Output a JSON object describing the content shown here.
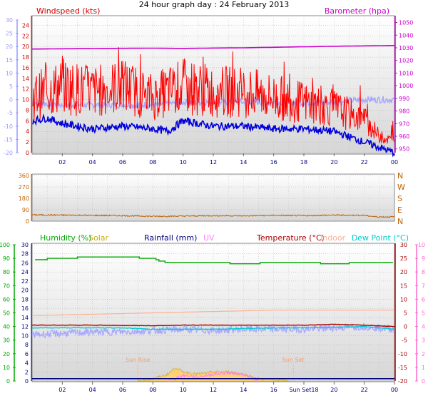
{
  "title": "24 hour graph day : 24 February 2013",
  "colors": {
    "wind_gust": "#ff0000",
    "wind_avg": "#0000dd",
    "temp_scale_trace": "#a8a8ff",
    "barometer": "#cc00cc",
    "wind_dir": "#c06000",
    "humidity": "#00aa00",
    "solar": "#ccaa00",
    "rainfall": "#000080",
    "uv": "#ff80ff",
    "temperature": "#aa0000",
    "indoor": "#ffb090",
    "dew_point": "#00cccc",
    "left_axis": "#9999ff",
    "grid": "#aaaaaa",
    "plot_bg_top": "#ffffff",
    "plot_bg_bottom": "#d8d8d8"
  },
  "chart_data": [
    {
      "type": "line",
      "panel": "wind-barometer",
      "legend_wind": "Windspeed (kts)",
      "legend_baro": "Barometer (hpa)",
      "left_axis": {
        "ticks": [
          "30",
          "25",
          "20",
          "15",
          "10",
          "5",
          "0",
          "-5",
          "-10",
          "-15",
          "-20"
        ],
        "ylim": [
          -20,
          30
        ]
      },
      "wind_axis": {
        "ticks": [
          "24",
          "22",
          "20",
          "18",
          "16",
          "14",
          "12",
          "10",
          "8",
          "6",
          "4",
          "2",
          "0"
        ],
        "ylim": [
          0,
          25
        ]
      },
      "baro_axis": {
        "ticks": [
          "1050",
          "1040",
          "1030",
          "1020",
          "1010",
          "1000",
          "990",
          "980",
          "970",
          "960",
          "950"
        ],
        "ylim": [
          947,
          1052
        ]
      },
      "x_ticks": [
        "02",
        "04",
        "06",
        "08",
        "10",
        "12",
        "14",
        "16",
        "18",
        "20",
        "22",
        "00"
      ],
      "series": [
        {
          "name": "Barometer (hpa)",
          "axis": "baro",
          "x": [
            0,
            2,
            4,
            6,
            8,
            10,
            12,
            14,
            16,
            18,
            20,
            22,
            24
          ],
          "values": [
            1029,
            1029.2,
            1029.4,
            1029.6,
            1029.7,
            1029.5,
            1029.8,
            1030,
            1030.4,
            1030.8,
            1031.2,
            1031.5,
            1031.8
          ]
        },
        {
          "name": "Windspeed (kts) gust",
          "axis": "wind",
          "x": [
            0,
            2,
            4,
            6,
            8,
            10,
            12,
            14,
            16,
            18,
            20,
            22,
            23,
            24
          ],
          "values": [
            10,
            12,
            11,
            12,
            10,
            12,
            11,
            11,
            10,
            9,
            8,
            6,
            3,
            2
          ]
        },
        {
          "name": "Windspeed (kts) average",
          "axis": "wind",
          "x": [
            0,
            1,
            2,
            4,
            6,
            8,
            9,
            10,
            12,
            14,
            16,
            18,
            20,
            22,
            23,
            24
          ],
          "values": [
            6,
            6.5,
            5.5,
            4.5,
            5,
            4.5,
            4,
            6,
            5,
            5,
            4.5,
            4.5,
            4,
            2,
            1,
            0
          ]
        },
        {
          "axis": "left",
          "x": [
            0,
            2,
            4,
            6,
            8,
            10,
            12,
            14,
            16,
            18,
            20,
            22,
            24
          ],
          "values": [
            -1,
            -2,
            -2,
            -2,
            -2,
            -1,
            -1,
            -1,
            -1,
            -1,
            -1,
            0,
            0
          ]
        }
      ]
    },
    {
      "type": "line",
      "panel": "wind-direction",
      "left_ticks": [
        "360",
        "270",
        "180",
        "90",
        "0"
      ],
      "right_ticks": [
        "N",
        "W",
        "S",
        "E",
        "N"
      ],
      "ylim": [
        0,
        360
      ],
      "series": [
        {
          "x": [
            0,
            2,
            4,
            6,
            8,
            10,
            12,
            14,
            16,
            18,
            20,
            22,
            22.8,
            24
          ],
          "values": [
            50,
            48,
            46,
            44,
            38,
            40,
            44,
            42,
            46,
            44,
            48,
            46,
            34,
            34
          ]
        }
      ]
    },
    {
      "type": "line",
      "panel": "humidity-rain-temperature",
      "legend": {
        "humidity": "Humidity (%)",
        "solar": "Solar",
        "rainfall": "Rainfall (mm)",
        "uv": "UV",
        "temperature": "Temperature (°C)",
        "indoor": "Indoor",
        "dew_point": "Dew Point (°C)"
      },
      "humidity_axis": {
        "ticks": [
          "100",
          "90",
          "80",
          "70",
          "60",
          "50",
          "40",
          "30",
          "20",
          "10",
          "0"
        ],
        "ylim": [
          0,
          100
        ]
      },
      "rain_axis": {
        "ticks": [
          "30",
          "28",
          "26",
          "24",
          "22",
          "20",
          "18",
          "16",
          "14",
          "12",
          "10",
          "8",
          "6",
          "4",
          "2",
          "0"
        ],
        "ylim": [
          0,
          30
        ]
      },
      "temp_axis": {
        "ticks": [
          "30",
          "25",
          "20",
          "15",
          "10",
          "5",
          "0",
          "-5",
          "-10",
          "-15",
          "-20"
        ],
        "ylim": [
          -20,
          30
        ]
      },
      "uv_axis": {
        "ticks": [
          "10",
          "9",
          "8",
          "7",
          "6",
          "5",
          "4",
          "3",
          "2",
          "1",
          "0"
        ],
        "ylim": [
          0,
          10
        ]
      },
      "x_ticks": [
        "02",
        "04",
        "06",
        "08",
        "10",
        "12",
        "14",
        "16",
        "Sun Set18",
        "20",
        "22",
        "00"
      ],
      "annotations": [
        {
          "text": "Sun Rise",
          "x": 7.0
        },
        {
          "text": "Sun Set",
          "x": 17.3
        }
      ],
      "series": [
        {
          "name": "Humidity (%)",
          "axis": "humidity",
          "x": [
            0,
            2,
            4,
            6,
            8,
            8.5,
            9,
            10,
            12,
            14,
            16,
            18,
            20,
            22,
            24
          ],
          "values": [
            89,
            90,
            91,
            91,
            90,
            88,
            87,
            87,
            87,
            86,
            87,
            87,
            86,
            87,
            87
          ]
        },
        {
          "name": "Indoor",
          "axis": "temp",
          "x": [
            0,
            4,
            8,
            12,
            16,
            20,
            24
          ],
          "values": [
            4,
            4.5,
            5,
            5.5,
            6,
            6,
            6
          ]
        },
        {
          "name": "Temperature (°C)",
          "axis": "temp",
          "x": [
            0,
            4,
            8,
            10,
            12,
            16,
            18,
            20,
            22,
            24
          ],
          "values": [
            0.5,
            0.5,
            0.3,
            0.5,
            0.5,
            0.5,
            0.5,
            0.8,
            0.5,
            0
          ]
        },
        {
          "name": "Dew Point (°C)",
          "axis": "temp",
          "x": [
            0,
            6,
            8,
            10,
            12,
            16,
            18,
            22,
            24
          ],
          "values": [
            -0.5,
            -0.5,
            -1,
            -1,
            -1,
            -0.5,
            -0.5,
            0,
            -1
          ]
        },
        {
          "name": "Rainfall (mm)",
          "axis": "rain",
          "x": [
            0,
            24
          ],
          "values": [
            0.5,
            0.5
          ]
        },
        {
          "name": "Solar",
          "axis": "rain",
          "x": [
            7,
            8,
            9,
            9.5,
            10,
            11,
            12,
            13,
            14,
            14.5,
            15,
            16,
            17,
            24
          ],
          "values": [
            0,
            0.5,
            1.5,
            3,
            2,
            1.5,
            2,
            2,
            1.5,
            1,
            0.5,
            0.2,
            0,
            0
          ]
        },
        {
          "name": "UV",
          "axis": "uv",
          "x": [
            9,
            10,
            11,
            12,
            13,
            14,
            15
          ],
          "values": [
            0,
            0.4,
            0.3,
            0.5,
            0.6,
            0.5,
            0
          ]
        },
        {
          "axis": "temp",
          "x": [
            0,
            2,
            4,
            6,
            8,
            10,
            12,
            14,
            16,
            18,
            20,
            22,
            24
          ],
          "values": [
            -3,
            -2.5,
            -2,
            -2,
            -1.5,
            -1,
            -1.5,
            -1,
            -1,
            -1,
            -0.5,
            0,
            -1
          ]
        }
      ]
    }
  ]
}
